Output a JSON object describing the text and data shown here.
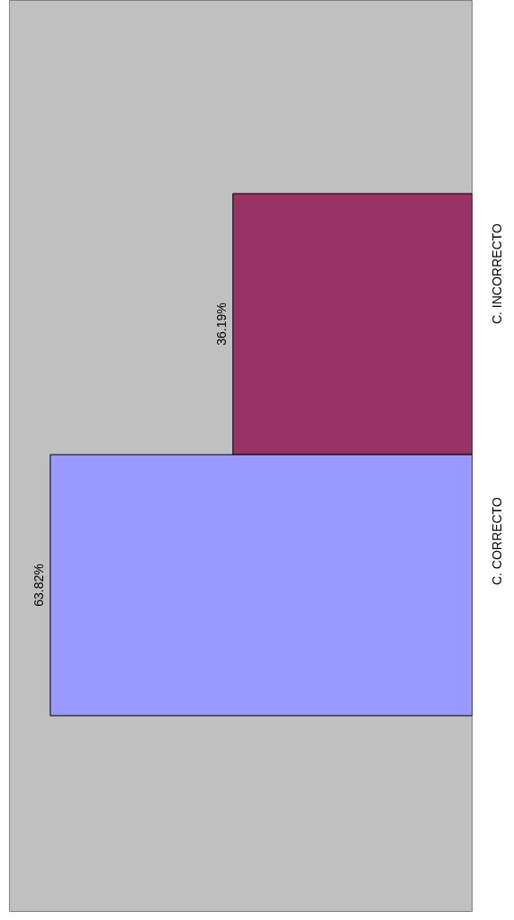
{
  "chart_data": {
    "type": "bar",
    "orientation": "horizontal",
    "categories": [
      "C. INCORRECTO",
      "C. CORRECTO"
    ],
    "values": [
      36.19,
      63.82
    ],
    "colors": [
      "#993366",
      "#9999ff"
    ],
    "value_labels": [
      "36.19%",
      "63.82%"
    ],
    "xlim": [
      70,
      0
    ],
    "tick_labels": "y",
    "grid": false
  }
}
